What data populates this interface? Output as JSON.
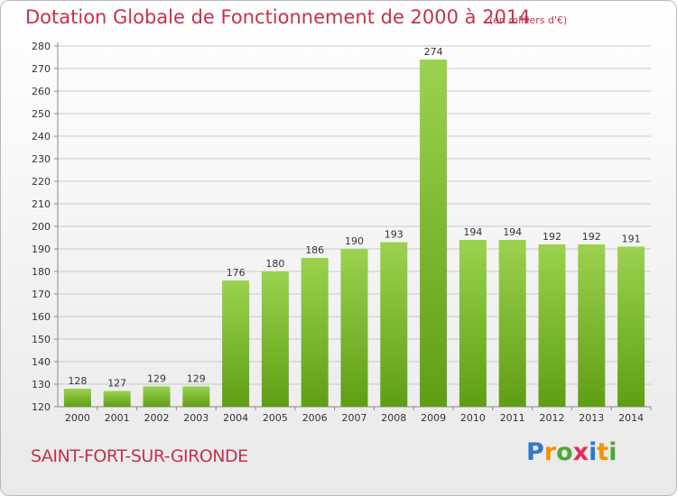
{
  "header": {
    "title": "Dotation Globale de Fonctionnement de 2000 à 2014",
    "subtitle": "(en milliers d'€)"
  },
  "footer": {
    "commune": "SAINT-FORT-SUR-GIRONDE",
    "brand": "Proxiti",
    "brand_colors": [
      "#2f79c9",
      "#f39200",
      "#4fa63c",
      "#e52b5a",
      "#2f79c9",
      "#f39200",
      "#4fa63c"
    ]
  },
  "colors": {
    "accent": "#c2334d",
    "bar_top": "#9bd24f",
    "bar_bottom": "#5f9e14",
    "grid": "#c9c9c9"
  },
  "chart_data": {
    "type": "bar",
    "title": "Dotation Globale de Fonctionnement de 2000 à 2014",
    "xlabel": "",
    "ylabel": "",
    "ylim": [
      120,
      280
    ],
    "ytick_step": 10,
    "grid": true,
    "categories": [
      "2000",
      "2001",
      "2002",
      "2003",
      "2004",
      "2005",
      "2006",
      "2007",
      "2008",
      "2009",
      "2010",
      "2011",
      "2012",
      "2013",
      "2014"
    ],
    "values": [
      128,
      127,
      129,
      129,
      176,
      180,
      186,
      190,
      193,
      274,
      194,
      194,
      192,
      192,
      191
    ]
  }
}
